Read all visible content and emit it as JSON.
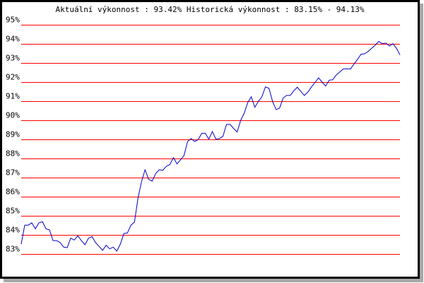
{
  "chart_data": {
    "type": "line",
    "title": "Aktuální výkonnost : 93.42%  Historická výkonnost : 83.15% - 94.13%",
    "ylim": [
      83,
      95
    ],
    "yticks": [
      "83%",
      "84%",
      "85%",
      "86%",
      "87%",
      "88%",
      "89%",
      "90%",
      "91%",
      "92%",
      "93%",
      "94%",
      "95%"
    ],
    "grid": true,
    "colors": {
      "grid": "#ff0000",
      "line": "#0000cc",
      "border": "#000000",
      "shadow": "#a8a8a8"
    },
    "series": [
      {
        "values": [
          83.52,
          84.51,
          84.51,
          84.63,
          84.32,
          84.63,
          84.69,
          84.32,
          84.26,
          83.7,
          83.7,
          83.6,
          83.36,
          83.33,
          83.83,
          83.73,
          83.95,
          83.7,
          83.48,
          83.83,
          83.91,
          83.6,
          83.4,
          83.19,
          83.46,
          83.27,
          83.36,
          83.15,
          83.52,
          84.07,
          84.1,
          84.51,
          84.67,
          85.93,
          86.79,
          87.41,
          86.91,
          86.81,
          87.22,
          87.41,
          87.38,
          87.59,
          87.68,
          88.05,
          87.72,
          87.93,
          88.15,
          88.89,
          89.04,
          88.89,
          88.99,
          89.32,
          89.32,
          89.01,
          89.41,
          89.01,
          89.04,
          89.16,
          89.78,
          89.78,
          89.57,
          89.38,
          90.0,
          90.37,
          90.93,
          91.23,
          90.68,
          90.99,
          91.23,
          91.75,
          91.67,
          90.99,
          90.56,
          90.64,
          91.17,
          91.3,
          91.3,
          91.54,
          91.73,
          91.51,
          91.3,
          91.48,
          91.75,
          91.98,
          92.22,
          92.0,
          91.79,
          92.1,
          92.12,
          92.37,
          92.53,
          92.69,
          92.69,
          92.69,
          92.94,
          93.19,
          93.46,
          93.48,
          93.6,
          93.77,
          93.93,
          94.13,
          94.01,
          94.04,
          93.89,
          94.01,
          93.77,
          93.42
        ]
      }
    ]
  }
}
